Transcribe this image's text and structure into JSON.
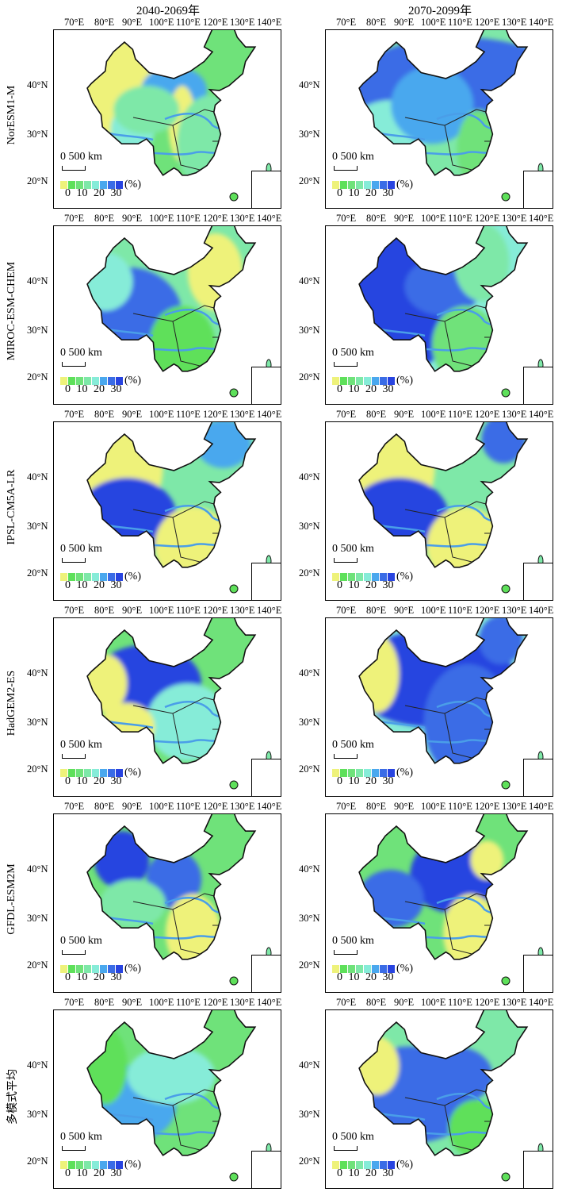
{
  "columns": [
    "2040-2069年",
    "2070-2099年"
  ],
  "rows": [
    "NorESM1-M",
    "MIROC-ESM-CHEM",
    "IPSL-CM5A-LR",
    "HadGEM2-ES",
    "GFDL-ESM2M",
    "多模式平均"
  ],
  "lon_ticks": [
    "70°E",
    "80°E",
    "90°E",
    "100°E",
    "110°E",
    "120°E",
    "130°E",
    "140°E"
  ],
  "lat_ticks": [
    "40°N",
    "30°N",
    "20°N"
  ],
  "scale_label": "0  500 km",
  "legend": {
    "colors": [
      "#eef27a",
      "#5ee05a",
      "#6fe27a",
      "#7ee8a8",
      "#86ecd8",
      "#4aa8ee",
      "#3a6ce6",
      "#2844e0"
    ],
    "ticks": "0 10 20 30",
    "unit": "(%)"
  },
  "colors": {
    "river": "#4a9ee8",
    "border": "#111111"
  }
}
